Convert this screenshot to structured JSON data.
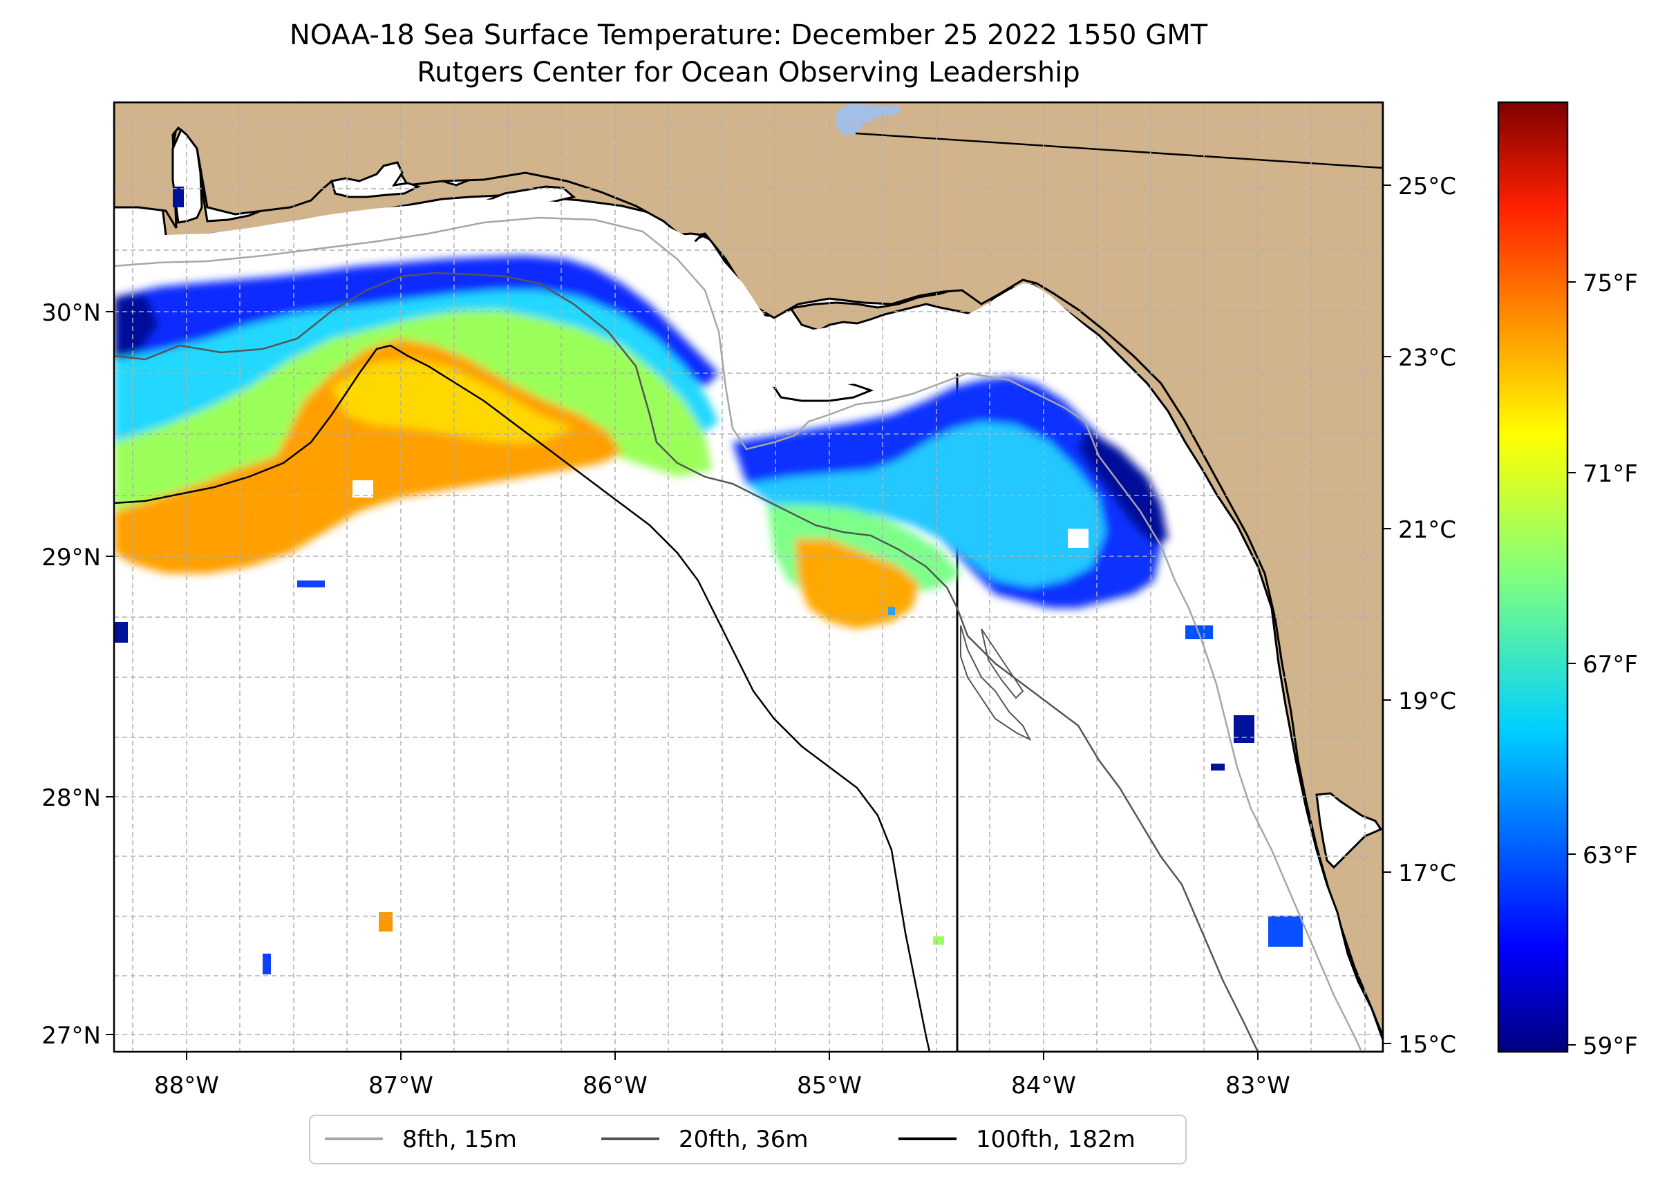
{
  "title": {
    "line1": "NOAA-18 Sea Surface Temperature: December 25 2022 1550 GMT",
    "line2": "Rutgers Center for Ocean Observing Leadership"
  },
  "map": {
    "lon_range": [
      -88.33,
      -82.4
    ],
    "lat_range": [
      26.94,
      30.86
    ],
    "lat_ticks": [
      {
        "value": 30,
        "label": "30°N"
      },
      {
        "value": 29,
        "label": "29°N"
      },
      {
        "value": 28,
        "label": "28°N"
      },
      {
        "value": 27,
        "label": "27°N"
      }
    ],
    "lon_ticks": [
      {
        "value": -88,
        "label": "88°W"
      },
      {
        "value": -87,
        "label": "87°W"
      },
      {
        "value": -86,
        "label": "86°W"
      },
      {
        "value": -85,
        "label": "85°W"
      },
      {
        "value": -84,
        "label": "84°W"
      },
      {
        "value": -83,
        "label": "83°W"
      }
    ],
    "gridlines": true,
    "land_color": "#d2b48c",
    "water_color": "#ffffff",
    "lake_color": "#a4bfe6"
  },
  "colorbar": {
    "range_c": [
      14.9,
      25.9
    ],
    "celsius_ticks": [
      {
        "value": 15,
        "label": "15°C"
      },
      {
        "value": 17,
        "label": "17°C"
      },
      {
        "value": 19,
        "label": "19°C"
      },
      {
        "value": 21,
        "label": "21°C"
      },
      {
        "value": 23,
        "label": "23°C"
      },
      {
        "value": 25,
        "label": "25°C"
      }
    ],
    "fahrenheit_ticks": [
      {
        "value": 59,
        "label": "59°F"
      },
      {
        "value": 63,
        "label": "63°F"
      },
      {
        "value": 67,
        "label": "67°F"
      },
      {
        "value": 71,
        "label": "71°F"
      },
      {
        "value": 75,
        "label": "75°F"
      }
    ],
    "colormap": "jet"
  },
  "legend": {
    "items": [
      {
        "label": "8fth, 15m",
        "color": "#a6a6a6"
      },
      {
        "label": "20fth, 36m",
        "color": "#555555"
      },
      {
        "label": "100fth, 182m",
        "color": "#000000"
      }
    ]
  }
}
